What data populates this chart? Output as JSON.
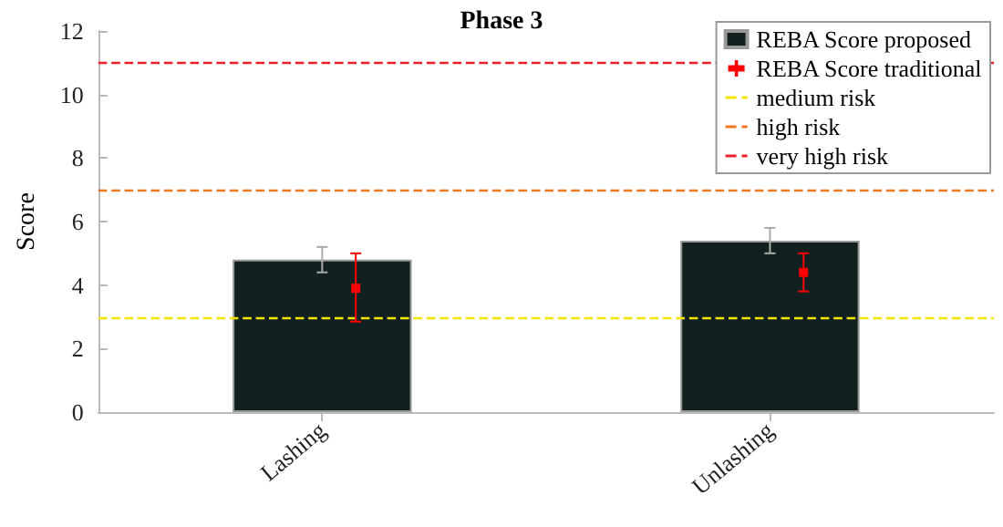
{
  "chart_data": {
    "type": "bar",
    "title": "Phase 3",
    "ylabel": "Score",
    "categories": [
      "Lashing",
      "Unlashing"
    ],
    "series": [
      {
        "name": "REBA Score proposed",
        "color": "#122020",
        "values": [
          4.8,
          5.4
        ],
        "errors": [
          0.4,
          0.4
        ]
      },
      {
        "name": "REBA Score traditional",
        "type": "scatter",
        "color": "#ff0000",
        "values": [
          3.9,
          4.4
        ],
        "errors": [
          [
            2.85,
            5.0
          ],
          [
            3.8,
            5.0
          ]
        ]
      }
    ],
    "ref_lines": [
      {
        "axis": "y",
        "value": 3,
        "label": "medium risk",
        "color": "#f2e600",
        "line_style": "dashed"
      },
      {
        "axis": "y",
        "value": 7,
        "label": "high risk",
        "color": "#ee7722",
        "line_style": "dashed"
      },
      {
        "axis": "y",
        "value": 11,
        "label": "very high risk",
        "color": "#e8202a",
        "line_style": "dashed"
      }
    ],
    "ylim": [
      0,
      12
    ],
    "yticks": [
      0,
      2,
      4,
      6,
      8,
      10,
      12
    ],
    "grid": false,
    "legend": "top right",
    "marker": "square"
  }
}
